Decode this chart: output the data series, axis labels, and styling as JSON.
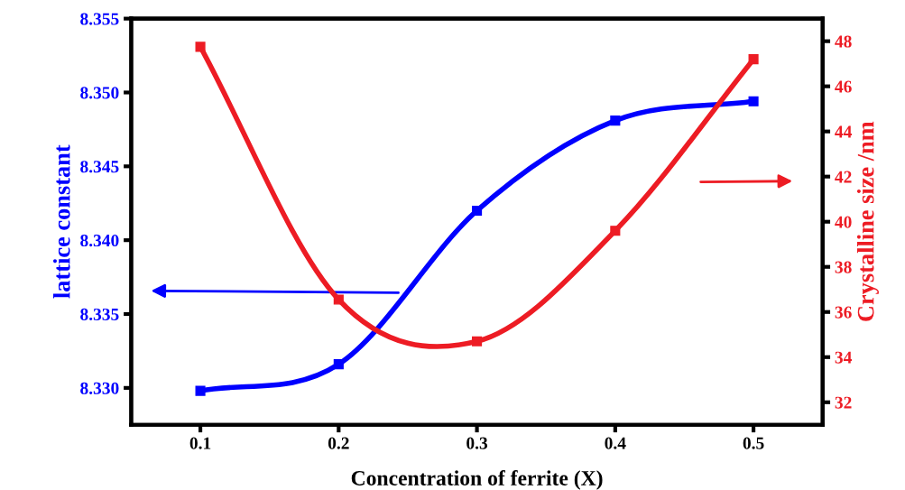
{
  "chart_data": {
    "type": "line",
    "xlabel": "Concentration of ferrite (X)",
    "ylabel": "lattice constant",
    "y2label": "Crystalline size /nm",
    "x": [
      0.1,
      0.2,
      0.3,
      0.4,
      0.5
    ],
    "series": [
      {
        "color": "#0000ff",
        "values": [
          8.3298,
          8.3316,
          8.342,
          8.3481,
          8.3494
        ]
      },
      {
        "color": "#ed1c24",
        "axis": "y2",
        "values": [
          47.75,
          36.55,
          34.7,
          39.6,
          47.2
        ]
      }
    ],
    "xlim": [
      0.05,
      0.55
    ],
    "xticks": [
      0.1,
      0.2,
      0.3,
      0.4,
      0.5
    ],
    "ylim": [
      8.3275,
      8.355
    ],
    "yticks": [
      {
        "value": 8.33,
        "label": "8.330"
      },
      {
        "value": 8.335,
        "label": "8.335"
      },
      {
        "value": 8.34,
        "label": "8.340"
      },
      {
        "value": 8.345,
        "label": "8.345"
      },
      {
        "value": 8.35,
        "label": "8.350"
      },
      {
        "value": 8.355,
        "label": "8.355"
      }
    ],
    "y2lim": [
      31,
      49
    ],
    "y2ticks": [
      32,
      34,
      36,
      38,
      40,
      42,
      44,
      46,
      48
    ],
    "marker": "square",
    "line_style": "solid",
    "grid": false
  }
}
